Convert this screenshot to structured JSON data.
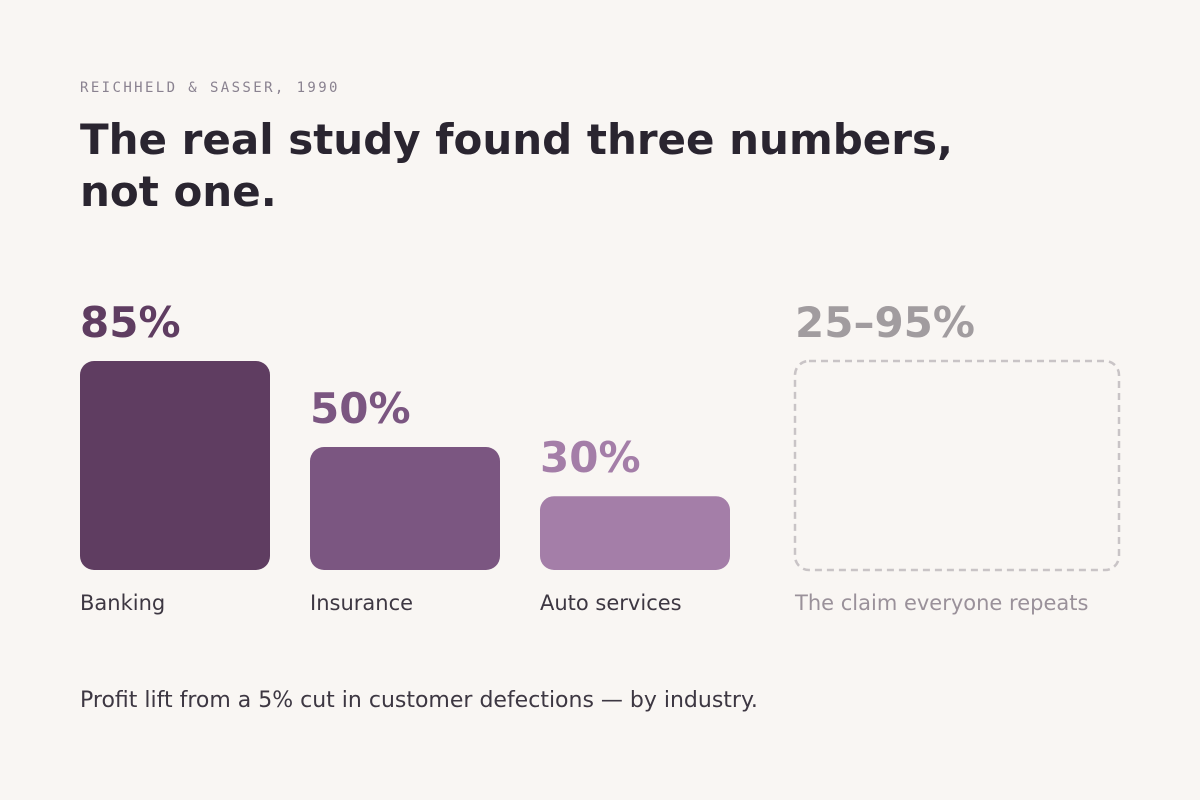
{
  "eyebrow": "REICHHELD & SASSER, 1990",
  "title": "The real study found three numbers, not one.",
  "caption": "Profit lift from a 5% cut in customer defections — by industry.",
  "chart_data": {
    "type": "bar",
    "categories": [
      "Banking",
      "Insurance",
      "Auto services"
    ],
    "values": [
      85,
      50,
      30
    ],
    "value_labels": [
      "85%",
      "50%",
      "30%"
    ],
    "colors": [
      "#5f3d61",
      "#7b5681",
      "#a47ea8"
    ],
    "unit": "%",
    "ylim": [
      0,
      85
    ],
    "claim": {
      "label": "The claim everyone repeats",
      "value_label": "25–95%",
      "range": [
        25,
        95
      ],
      "style": "dashed-outline",
      "color": "#c9c4c6",
      "label_color": "#9a919a",
      "value_color": "#a19c9f"
    },
    "title": "",
    "xlabel": "",
    "ylabel": ""
  }
}
